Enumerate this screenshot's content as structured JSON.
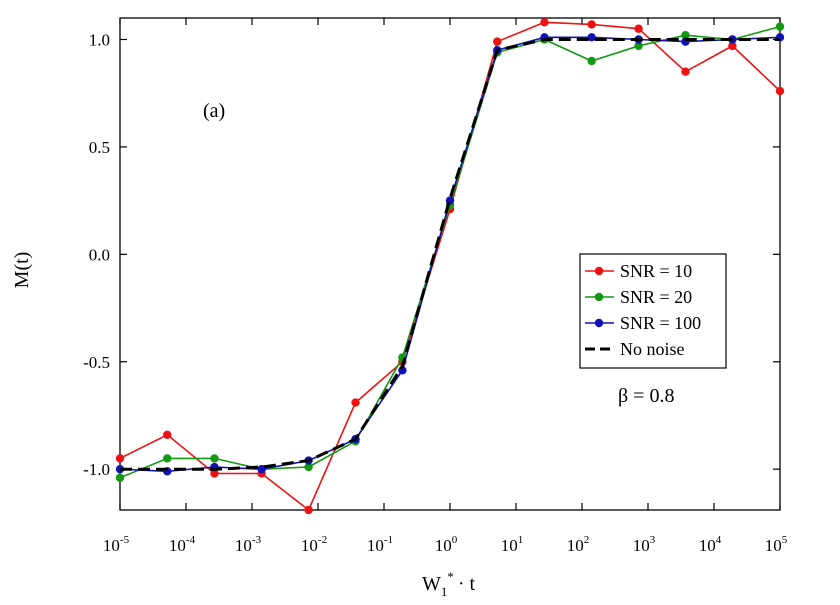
{
  "chart_data": {
    "type": "line",
    "panel_label": "(a)",
    "annotation": "β = 0.8",
    "xlabel": {
      "base": "W",
      "sub": "1",
      "sup": "*",
      "rest": "· t"
    },
    "ylabel": "M(t)",
    "xscale": "log",
    "xlim": [
      1e-05,
      100000.0
    ],
    "ylim": [
      -1.19,
      1.1
    ],
    "xticks": [
      {
        "base": "10",
        "exp": "-5",
        "value": 1e-05
      },
      {
        "base": "10",
        "exp": "-4",
        "value": 0.0001
      },
      {
        "base": "10",
        "exp": "-3",
        "value": 0.001
      },
      {
        "base": "10",
        "exp": "-2",
        "value": 0.01
      },
      {
        "base": "10",
        "exp": "-1",
        "value": 0.1
      },
      {
        "base": "10",
        "exp": "0",
        "value": 1.0
      },
      {
        "base": "10",
        "exp": "1",
        "value": 10.0
      },
      {
        "base": "10",
        "exp": "2",
        "value": 100.0
      },
      {
        "base": "10",
        "exp": "3",
        "value": 1000.0
      },
      {
        "base": "10",
        "exp": "4",
        "value": 10000.0
      },
      {
        "base": "10",
        "exp": "5",
        "value": 100000.0
      }
    ],
    "yticks": [
      {
        "label": "1.0",
        "value": 1.0
      },
      {
        "label": "0.5",
        "value": 0.5
      },
      {
        "label": "0.0",
        "value": 0.0
      },
      {
        "label": "-0.5",
        "value": -0.5
      },
      {
        "label": "-1.0",
        "value": -1.0
      }
    ],
    "grid": false,
    "legend_position": "right",
    "x": [
      1e-05,
      5.2e-05,
      0.00027,
      0.0014,
      0.0072,
      0.037,
      0.19,
      1.0,
      5.2,
      27,
      140,
      720,
      3700,
      19000,
      100000.0
    ],
    "series": [
      {
        "name": "SNR = 10",
        "color": "#ee1111",
        "style": "line-marker",
        "y": [
          -0.95,
          -0.84,
          -1.02,
          -1.02,
          -1.19,
          -0.69,
          -0.5,
          0.21,
          0.99,
          1.08,
          1.07,
          1.05,
          0.85,
          0.97,
          0.76
        ]
      },
      {
        "name": "SNR = 20",
        "color": "#119911",
        "style": "line-marker",
        "y": [
          -1.04,
          -0.95,
          -0.95,
          -1.0,
          -0.99,
          -0.87,
          -0.48,
          0.23,
          0.94,
          1.0,
          0.9,
          0.97,
          1.02,
          1.0,
          1.06
        ]
      },
      {
        "name": "SNR = 100",
        "color": "#1111bb",
        "style": "line-marker",
        "y": [
          -1.0,
          -1.01,
          -0.99,
          -1.0,
          -0.96,
          -0.86,
          -0.54,
          0.25,
          0.95,
          1.01,
          1.01,
          1.0,
          0.99,
          1.0,
          1.01
        ]
      },
      {
        "name": "No noise",
        "color": "#000000",
        "style": "dashed",
        "y": [
          -1.0,
          -1.0,
          -1.0,
          -0.99,
          -0.96,
          -0.86,
          -0.52,
          0.26,
          0.95,
          1.0,
          1.0,
          1.0,
          1.0,
          1.0,
          1.0
        ]
      }
    ]
  }
}
